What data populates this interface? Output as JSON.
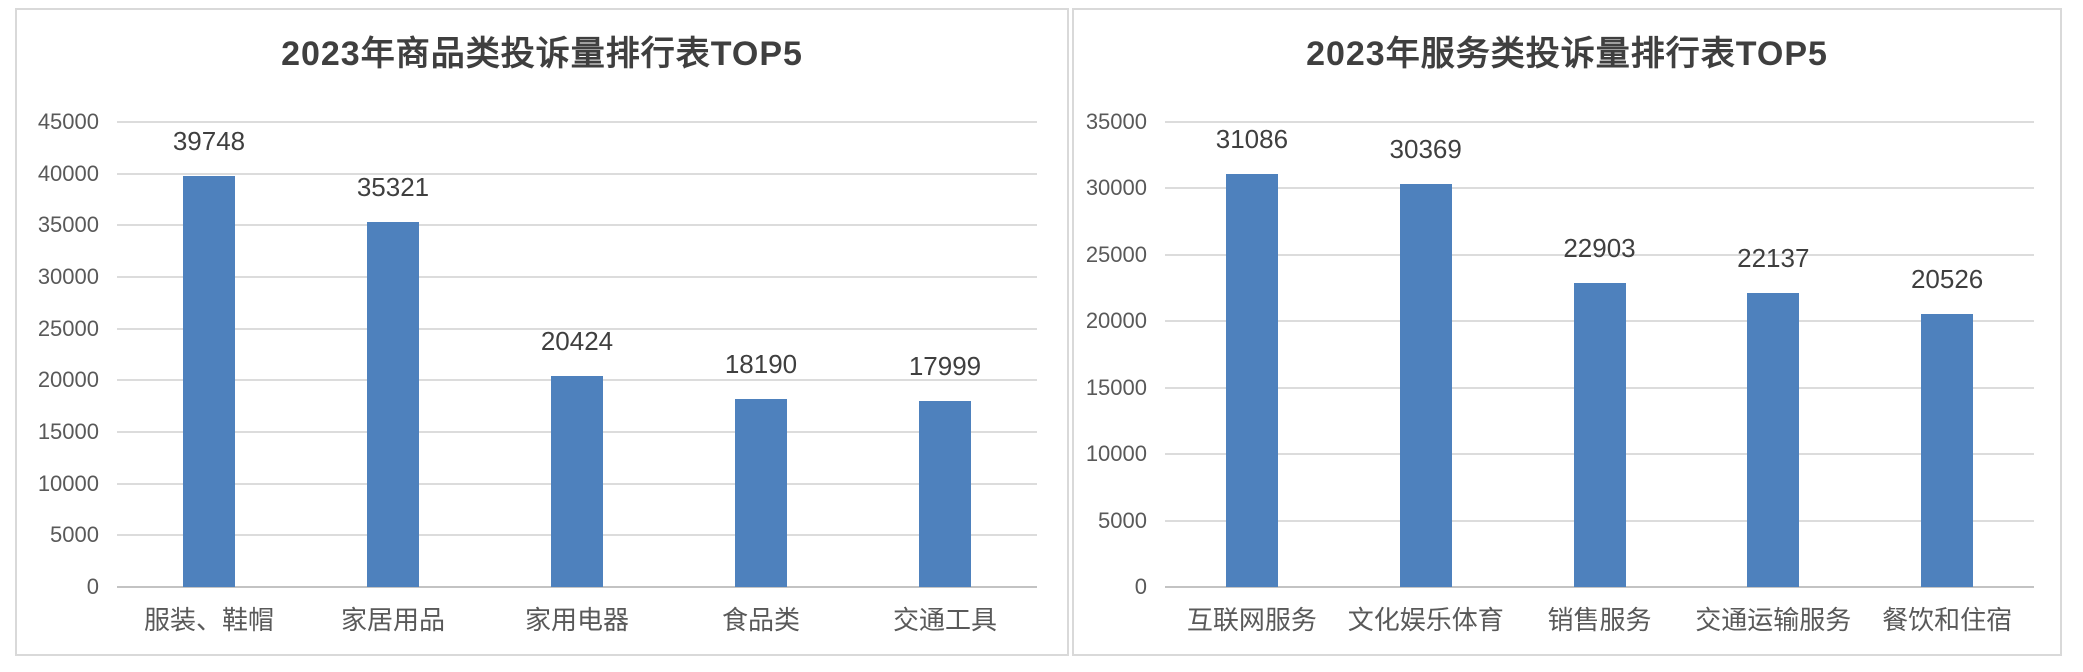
{
  "page": {
    "background_color": "#ffffff",
    "panel_border_color": "#d9d9d9"
  },
  "chart_data": [
    {
      "type": "bar",
      "title": "2023年商品类投诉量排行表TOP5",
      "categories": [
        "服装、鞋帽",
        "家居用品",
        "家用电器",
        "食品类",
        "交通工具"
      ],
      "values": [
        39748,
        35321,
        20424,
        18190,
        17999
      ],
      "data_labels": [
        "39748",
        "35321",
        "20424",
        "18190",
        "17999"
      ],
      "xlabel": "",
      "ylabel": "",
      "ylim": [
        0,
        45000
      ],
      "ytick_step": 5000,
      "ytick_labels": [
        "0",
        "5000",
        "10000",
        "15000",
        "20000",
        "25000",
        "30000",
        "35000",
        "40000",
        "45000"
      ],
      "grid": true,
      "legend": "none",
      "bar_color": "#4e81bd",
      "gridline_color": "#dcdcdc",
      "axis_line_color": "#c3c3c3",
      "title_color": "#3f3f3f",
      "tick_label_color": "#595959",
      "value_label_color": "#3f3f3f"
    },
    {
      "type": "bar",
      "title": "2023年服务类投诉量排行表TOP5",
      "categories": [
        "互联网服务",
        "文化娱乐体育",
        "销售服务",
        "交通运输服务",
        "餐饮和住宿"
      ],
      "values": [
        31086,
        30369,
        22903,
        22137,
        20526
      ],
      "data_labels": [
        "31086",
        "30369",
        "22903",
        "22137",
        "20526"
      ],
      "xlabel": "",
      "ylabel": "",
      "ylim": [
        0,
        35000
      ],
      "ytick_step": 5000,
      "ytick_labels": [
        "0",
        "5000",
        "10000",
        "15000",
        "20000",
        "25000",
        "30000",
        "35000"
      ],
      "grid": true,
      "legend": "none",
      "bar_color": "#4e81bd",
      "gridline_color": "#dcdcdc",
      "axis_line_color": "#c3c3c3",
      "title_color": "#3f3f3f",
      "tick_label_color": "#595959",
      "value_label_color": "#3f3f3f"
    }
  ]
}
